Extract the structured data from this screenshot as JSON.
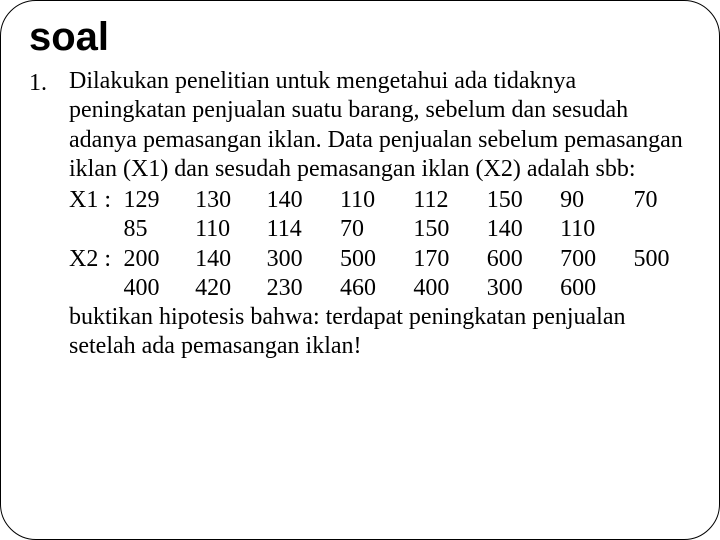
{
  "title": "soal",
  "list_number": "1.",
  "intro": "Dilakukan penelitian untuk mengetahui ada tidaknya peningkatan penjualan suatu barang, sebelum dan sesudah adanya pemasangan iklan. Data penjualan sebelum pemasangan iklan (X1) dan sesudah pemasangan iklan (X2) adalah sbb:",
  "x1": {
    "label": "X1 :",
    "row1": [
      "129",
      "130",
      "140",
      "110",
      "112",
      "150",
      "90",
      "70"
    ],
    "row2": [
      "85",
      "110",
      "114",
      "70",
      "150",
      "140",
      "110",
      ""
    ]
  },
  "x2": {
    "label": "X2  :",
    "row1": [
      "200",
      "140",
      "300",
      "500",
      "170",
      "600",
      "700",
      "500"
    ],
    "row2": [
      "400",
      "420",
      "230",
      "460",
      "400",
      "300",
      "600",
      ""
    ]
  },
  "conclusion": "buktikan hipotesis bahwa: terdapat peningkatan penjualan setelah ada pemasangan iklan!"
}
